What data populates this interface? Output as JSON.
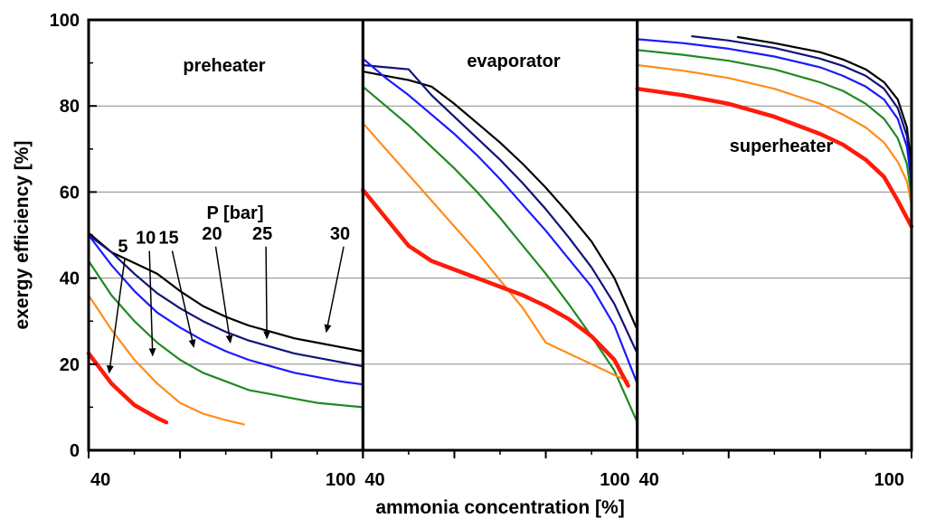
{
  "chart_data": {
    "type": "line",
    "ylabel": "exergy efficiency [%]",
    "xlabel": "ammonia concentration [%]",
    "ylim": [
      0,
      100
    ],
    "yticks": [
      0,
      20,
      40,
      60,
      80,
      100
    ],
    "y_tick_labels": [
      "0",
      "20",
      "40",
      "60",
      "80",
      "100"
    ],
    "grid_y": [
      20,
      40,
      60,
      80
    ],
    "legend_title": "P [bar]",
    "pressures": [
      "5",
      "10",
      "15",
      "20",
      "25",
      "30"
    ],
    "series_colors": {
      "5": "#ff1a0a",
      "10": "#ff8c1a",
      "15": "#1f8a1f",
      "20": "#1a1aff",
      "25": "#12127a",
      "30": "#000000"
    },
    "panels": [
      {
        "title": "preheater",
        "xlim": [
          40,
          100
        ],
        "x_tick_labels": [
          "40",
          "100"
        ],
        "x_tick_values": [
          40,
          100
        ],
        "series": [
          {
            "pressure": "5",
            "x": [
              40,
              45,
              50,
              55,
              57
            ],
            "y": [
              22.5,
              15.5,
              10.5,
              7.5,
              6.5
            ]
          },
          {
            "pressure": "10",
            "x": [
              40,
              45,
              50,
              55,
              60,
              65,
              70,
              74
            ],
            "y": [
              36,
              28,
              21,
              15.5,
              11,
              8.5,
              7,
              6
            ]
          },
          {
            "pressure": "15",
            "x": [
              40,
              45,
              50,
              55,
              60,
              65,
              70,
              75,
              80,
              85,
              90,
              95,
              100
            ],
            "y": [
              44,
              36,
              30,
              25,
              21,
              18,
              16,
              14,
              13,
              12,
              11,
              10.5,
              10
            ]
          },
          {
            "pressure": "20",
            "x": [
              40,
              45,
              50,
              55,
              60,
              65,
              70,
              75,
              80,
              85,
              90,
              95,
              100
            ],
            "y": [
              50,
              43,
              37,
              32,
              28.5,
              25.5,
              23,
              21,
              19.5,
              18,
              17,
              16,
              15.3
            ]
          },
          {
            "pressure": "25",
            "x": [
              40,
              45,
              50,
              55,
              60,
              65,
              70,
              75,
              80,
              85,
              90,
              95,
              100
            ],
            "y": [
              50,
              46,
              41,
              36.5,
              33,
              30,
              27.5,
              25.5,
              24,
              22.5,
              21.5,
              20.5,
              19.5
            ]
          },
          {
            "pressure": "30",
            "x": [
              40,
              45,
              50,
              55,
              60,
              65,
              70,
              75,
              80,
              85,
              90,
              95,
              100
            ],
            "y": [
              50.5,
              46,
              43.5,
              41,
              37,
              33.5,
              31,
              29,
              27.5,
              26,
              25,
              24,
              23
            ]
          }
        ],
        "annotations": [
          {
            "label": "5",
            "x": 47.5,
            "y": 46,
            "ax": 44.5,
            "ay": 18
          },
          {
            "label": "10",
            "x": 52.5,
            "y": 48,
            "ax": 54,
            "ay": 22
          },
          {
            "label": "15",
            "x": 57.5,
            "y": 48,
            "ax": 63,
            "ay": 24
          },
          {
            "label": "20",
            "x": 67,
            "y": 49,
            "ax": 71,
            "ay": 25
          },
          {
            "label": "25",
            "x": 78,
            "y": 49,
            "ax": 79,
            "ay": 26
          },
          {
            "label": "30",
            "x": 95,
            "y": 49,
            "ax": 92,
            "ay": 27.5
          }
        ]
      },
      {
        "title": "evaporator",
        "xlim": [
          40,
          100
        ],
        "x_tick_labels": [
          "40",
          "100"
        ],
        "x_tick_values": [
          40,
          100
        ],
        "series": [
          {
            "pressure": "5",
            "x": [
              40,
              45,
              50,
              55,
              60,
              65,
              70,
              75,
              80,
              85,
              90,
              95,
              98
            ],
            "y": [
              60.5,
              54,
              47.5,
              44,
              42,
              40,
              38,
              36,
              33.5,
              30.5,
              26.5,
              21,
              15
            ]
          },
          {
            "pressure": "10",
            "x": [
              40,
              45,
              50,
              55,
              60,
              65,
              70,
              75,
              80,
              85,
              90,
              95,
              98
            ],
            "y": [
              76,
              70,
              64,
              58,
              52,
              46,
              39.5,
              33,
              25,
              22.5,
              20,
              17.5,
              16
            ]
          },
          {
            "pressure": "15",
            "x": [
              40,
              45,
              50,
              55,
              60,
              65,
              70,
              75,
              80,
              85,
              90,
              95,
              100
            ],
            "y": [
              84.5,
              80,
              75.5,
              70.5,
              65.5,
              60,
              54,
              47.5,
              41,
              34,
              26.5,
              18.5,
              6.5
            ]
          },
          {
            "pressure": "20",
            "x": [
              40,
              45,
              50,
              55,
              60,
              65,
              70,
              75,
              80,
              85,
              90,
              95,
              100
            ],
            "y": [
              91,
              86.5,
              82.5,
              78,
              73.5,
              68.5,
              63,
              57,
              51,
              44.5,
              38,
              29,
              15.5
            ]
          },
          {
            "pressure": "25",
            "x": [
              40,
              45,
              50,
              55,
              60,
              65,
              70,
              75,
              80,
              85,
              90,
              95,
              100
            ],
            "y": [
              89.5,
              89,
              88.5,
              82.5,
              77.5,
              72.5,
              67.5,
              62,
              56,
              49.5,
              42.5,
              34,
              22.5
            ]
          },
          {
            "pressure": "30",
            "x": [
              40,
              45,
              50,
              55,
              60,
              65,
              70,
              75,
              80,
              85,
              90,
              95,
              100
            ],
            "y": [
              88,
              87,
              86,
              84.5,
              80.5,
              76,
              71.5,
              66.5,
              61,
              55,
              48.5,
              40,
              28
            ]
          }
        ]
      },
      {
        "title": "superheater",
        "xlim": [
          40,
          100
        ],
        "x_tick_labels": [
          "40",
          "100"
        ],
        "x_tick_values": [
          40,
          100
        ],
        "series": [
          {
            "pressure": "5",
            "x": [
              40,
              50,
              60,
              70,
              80,
              85,
              90,
              94,
              97,
              99,
              100
            ],
            "y": [
              84,
              82.5,
              80.5,
              77.5,
              73.5,
              71,
              67.5,
              63.5,
              58,
              54,
              52
            ]
          },
          {
            "pressure": "10",
            "x": [
              40,
              50,
              60,
              70,
              80,
              85,
              90,
              94,
              97,
              99,
              100
            ],
            "y": [
              89.5,
              88.2,
              86.5,
              84,
              80.5,
              78,
              75,
              71.5,
              67,
              62.5,
              57
            ]
          },
          {
            "pressure": "15",
            "x": [
              40,
              50,
              60,
              70,
              80,
              85,
              90,
              94,
              97,
              99,
              100
            ],
            "y": [
              93,
              91.9,
              90.5,
              88.5,
              85.5,
              83.5,
              80.5,
              77,
              72.5,
              66.5,
              59
            ]
          },
          {
            "pressure": "20",
            "x": [
              40,
              50,
              60,
              70,
              80,
              85,
              90,
              94,
              97,
              99,
              100
            ],
            "y": [
              95.5,
              94.6,
              93.3,
              91.5,
              89,
              87,
              84.5,
              81.5,
              77,
              70.5,
              62
            ]
          },
          {
            "pressure": "25",
            "x": [
              52,
              60,
              70,
              80,
              85,
              90,
              94,
              97,
              99,
              100
            ],
            "y": [
              96.2,
              95.2,
              93.5,
              91,
              89.3,
              87,
              84,
              79.5,
              73,
              64
            ]
          },
          {
            "pressure": "30",
            "x": [
              62,
              70,
              80,
              85,
              90,
              94,
              97,
              99,
              100
            ],
            "y": [
              96,
              94.6,
              92.5,
              90.8,
              88.5,
              85.5,
              81.5,
              75,
              65.5
            ]
          }
        ]
      }
    ]
  }
}
